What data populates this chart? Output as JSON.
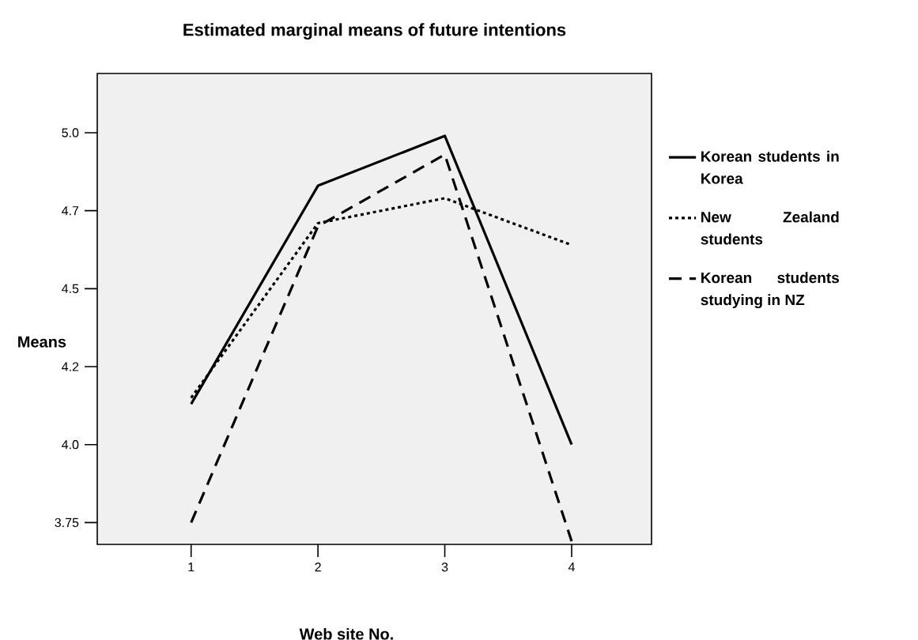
{
  "chart_data": {
    "type": "line",
    "title": "Estimated marginal means of future intentions",
    "xlabel": "Web site No.",
    "ylabel": "Means",
    "x": [
      1,
      2,
      3,
      4
    ],
    "xlim": [
      0.26,
      4.63
    ],
    "xticks": [
      1,
      2,
      3,
      4
    ],
    "ylim": [
      3.68,
      5.19
    ],
    "yticks": [
      3.75,
      {
        "value": 4,
        "label": "4.0"
      },
      {
        "value": 4.25,
        "label": "4.2"
      },
      4.5,
      {
        "value": 4.75,
        "label": "4.7"
      },
      {
        "value": 5,
        "label": "5.0"
      }
    ],
    "series": [
      {
        "name": "Korean students in Korea",
        "color": "#000000",
        "line_style": "solid",
        "values": [
          4.13,
          4.83,
          4.99,
          4.0
        ]
      },
      {
        "name": "New Zealand students",
        "color": "#000000",
        "line_style": "dotted",
        "values": [
          4.15,
          4.71,
          4.79,
          4.64
        ]
      },
      {
        "name": "Korean students studying in NZ",
        "color": "#000000",
        "line_style": "dashed",
        "values": [
          3.75,
          4.7,
          4.93,
          3.69
        ]
      }
    ],
    "marker": "none",
    "grid": false,
    "legend": "right"
  }
}
